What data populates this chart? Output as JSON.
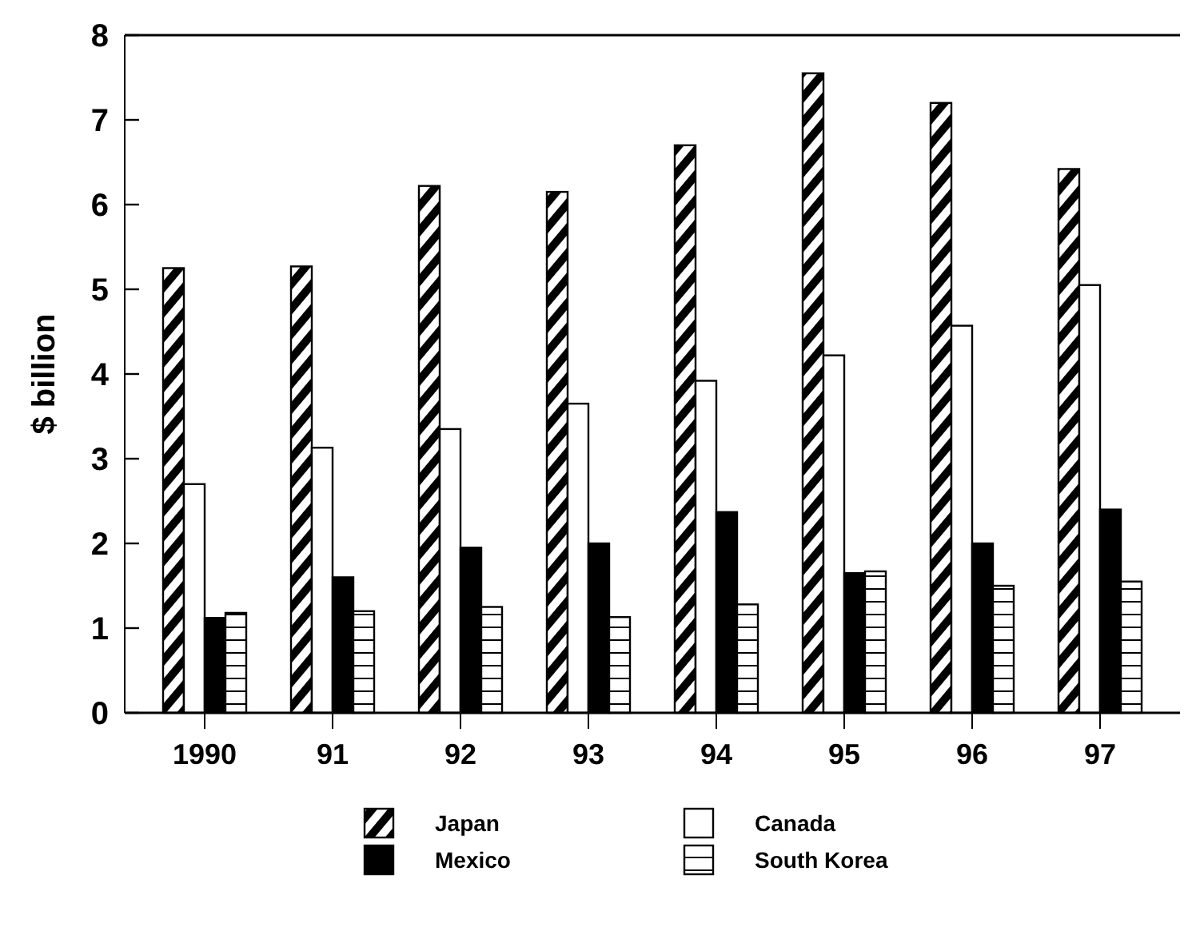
{
  "chart_data": {
    "type": "bar",
    "ylabel": "$ billion",
    "categories": [
      "1990",
      "91",
      "92",
      "93",
      "94",
      "95",
      "96",
      "97"
    ],
    "series": [
      {
        "name": "Japan",
        "color": "#000000",
        "values": [
          5.25,
          5.27,
          6.22,
          6.15,
          6.7,
          7.55,
          7.2,
          6.42
        ]
      },
      {
        "name": "Canada",
        "color": "#ffffff",
        "values": [
          2.7,
          3.13,
          3.35,
          3.65,
          3.92,
          4.22,
          4.57,
          5.05
        ]
      },
      {
        "name": "Mexico",
        "color": "#000000",
        "values": [
          1.12,
          1.6,
          1.95,
          2.0,
          2.37,
          1.65,
          2.0,
          2.4
        ]
      },
      {
        "name": "South Korea",
        "color": "#000000",
        "values": [
          1.18,
          1.2,
          1.25,
          1.13,
          1.28,
          1.67,
          1.5,
          1.55
        ]
      }
    ],
    "ylim": [
      0,
      8
    ],
    "yticks": [
      0,
      1,
      2,
      3,
      4,
      5,
      6,
      7,
      8
    ],
    "grid": false,
    "legend": "bottom"
  }
}
